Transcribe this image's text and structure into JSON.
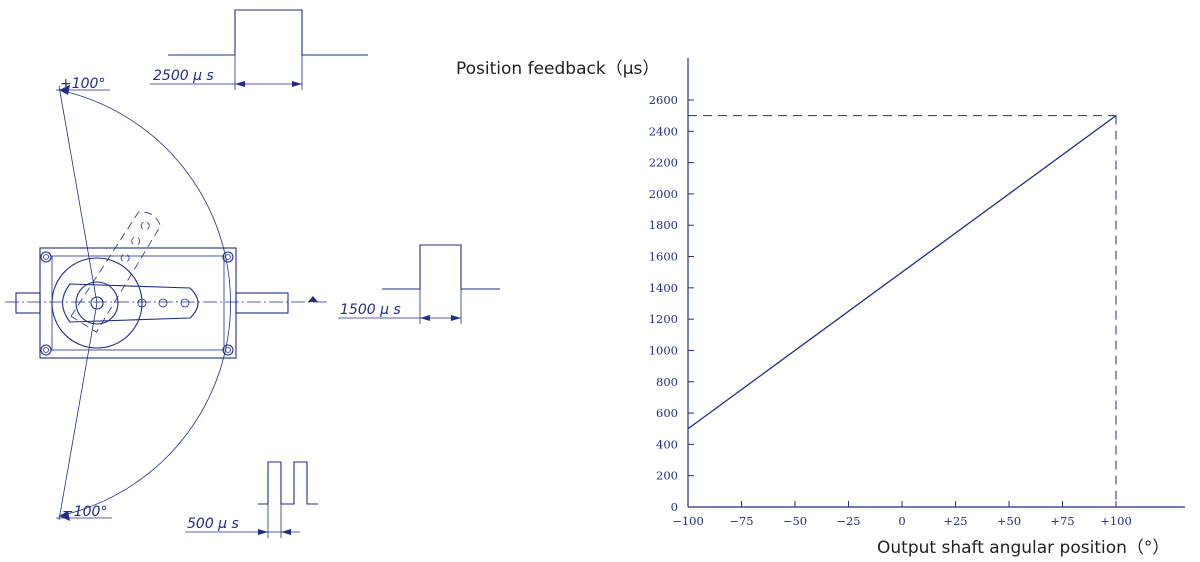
{
  "diagram": {
    "angle_top_label": "+100°",
    "angle_bottom_label": "−100°",
    "pulse_top_label": "2500 μ s",
    "pulse_mid_label": "1500 μ s",
    "pulse_bottom_label": "500 μ s"
  },
  "chart_data": {
    "type": "line",
    "ylabel": "Position feedback（μs）",
    "xlabel": "Output shaft angular position（°）",
    "x_ticks": [
      "−100",
      "−75",
      "−50",
      "−25",
      "0",
      "+25",
      "+50",
      "+75",
      "+100"
    ],
    "y_ticks": [
      "0",
      "200",
      "400",
      "600",
      "800",
      "1000",
      "1200",
      "1400",
      "1600",
      "1800",
      "2000",
      "2200",
      "2400",
      "2600"
    ],
    "xlim": [
      -100,
      100
    ],
    "ylim": [
      0,
      2600
    ],
    "series": [
      {
        "x": [
          -100,
          100
        ],
        "y": [
          500,
          2500
        ]
      }
    ],
    "reference_point": {
      "x": 100,
      "y": 2500
    },
    "color": "#1f2d8c"
  }
}
